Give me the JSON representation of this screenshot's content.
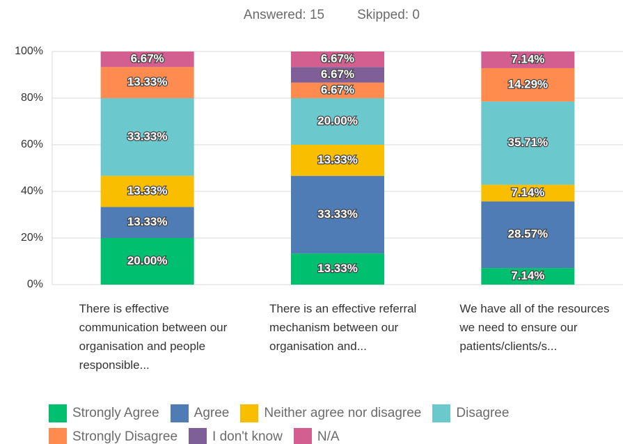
{
  "chart_data": {
    "type": "stacked_bar",
    "answered": "Answered: 15",
    "skipped": "Skipped: 0",
    "categories": [
      "There is effective communication between our organisation and people responsible...",
      "There is an effective referral mechanism between our organisation and...",
      "We have all of the resources we need to ensure our patients/clients/s..."
    ],
    "series": [
      {
        "name": "Strongly Agree",
        "color": "#00bf6f",
        "values": [
          20,
          13.33,
          7.14
        ],
        "value_labels": [
          "20.00%",
          "13.33%",
          "7.14%"
        ]
      },
      {
        "name": "Agree",
        "color": "#507cb6",
        "values": [
          13.33,
          33.33,
          28.57
        ],
        "value_labels": [
          "13.33%",
          "33.33%",
          "28.57%"
        ]
      },
      {
        "name": "Neither agree nor disagree",
        "color": "#f9be00",
        "values": [
          13.33,
          13.33,
          7.14
        ],
        "value_labels": [
          "13.33%",
          "13.33%",
          "7.14%"
        ]
      },
      {
        "name": "Disagree",
        "color": "#6bc8cd",
        "values": [
          33.33,
          20,
          35.71
        ],
        "value_labels": [
          "33.33%",
          "20.00%",
          "35.71%"
        ]
      },
      {
        "name": "Strongly Disagree",
        "color": "#ff8b4f",
        "values": [
          13.33,
          6.67,
          14.29
        ],
        "value_labels": [
          "13.33%",
          "6.67%",
          "14.29%"
        ]
      },
      {
        "name": "I don't know",
        "color": "#7f5f98",
        "values": [
          0,
          6.67,
          0
        ],
        "value_labels": [
          null,
          "6.67%",
          null
        ]
      },
      {
        "name": "N/A",
        "color": "#d25f90",
        "values": [
          6.67,
          6.67,
          7.14
        ],
        "value_labels": [
          "6.67%",
          "6.67%",
          "7.14%"
        ]
      }
    ],
    "ylim": [
      0,
      100
    ],
    "yticks": [
      {
        "value": 0,
        "label": "0%"
      },
      {
        "value": 20,
        "label": "20%"
      },
      {
        "value": 40,
        "label": "40%"
      },
      {
        "value": 60,
        "label": "60%"
      },
      {
        "value": 80,
        "label": "80%"
      },
      {
        "value": 100,
        "label": "100%"
      }
    ],
    "grid": true
  }
}
